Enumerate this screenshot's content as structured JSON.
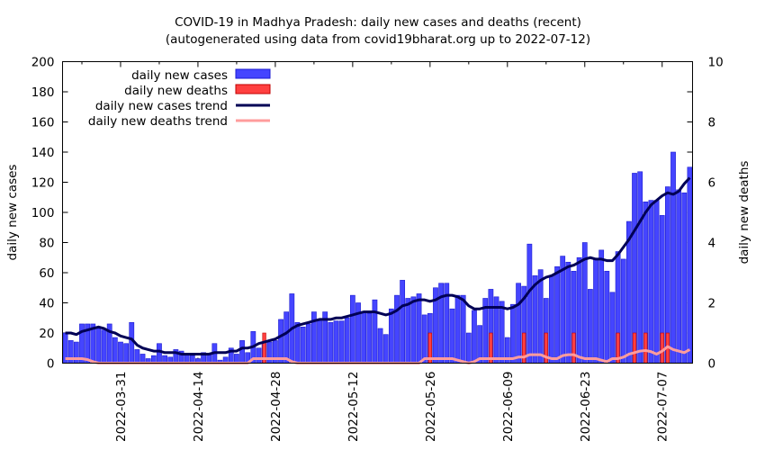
{
  "chart_data": {
    "type": "bar",
    "title": "COVID-19 in Madhya Pradesh: daily new cases and deaths (recent)",
    "subtitle": "(autogenerated using data from covid19bharat.org up to 2022-07-12)",
    "ylabel": "daily new cases",
    "y2label": "daily new deaths",
    "ylim": [
      0,
      200
    ],
    "y2lim": [
      0,
      10
    ],
    "yticks": [
      0,
      20,
      40,
      60,
      80,
      100,
      120,
      140,
      160,
      180,
      200
    ],
    "y2ticks": [
      0,
      2,
      4,
      6,
      8,
      10
    ],
    "x_start": "2022-03-21",
    "x_end": "2022-07-12",
    "xtick_labels": [
      "2022-03-31",
      "2022-04-14",
      "2022-04-28",
      "2022-05-12",
      "2022-05-26",
      "2022-06-09",
      "2022-06-23",
      "2022-07-07"
    ],
    "legend": {
      "position": "top-left",
      "entries": [
        "daily new cases",
        "daily new deaths",
        "daily new cases trend",
        "daily new deaths trend"
      ]
    },
    "colors": {
      "cases_bar": "#4545ff",
      "cases_bar_edge": "#1c1cd0",
      "deaths_bar": "#ff4040",
      "deaths_bar_edge": "#c00000",
      "cases_trend": "#000055",
      "deaths_trend": "#ff9c9c"
    },
    "series": [
      {
        "name": "daily new cases",
        "axis": "y1",
        "values": [
          20,
          15,
          14,
          26,
          26,
          26,
          23,
          22,
          26,
          17,
          14,
          13,
          27,
          9,
          6,
          3,
          5,
          13,
          5,
          4,
          9,
          8,
          6,
          5,
          3,
          7,
          6,
          13,
          2,
          4,
          10,
          6,
          15,
          7,
          21,
          10,
          14,
          14,
          15,
          29,
          34,
          46,
          27,
          24,
          26,
          34,
          28,
          34,
          27,
          28,
          28,
          30,
          45,
          40,
          34,
          33,
          42,
          23,
          19,
          36,
          45,
          55,
          43,
          44,
          46,
          32,
          33,
          50,
          53,
          53,
          36,
          45,
          45,
          20,
          35,
          25,
          43,
          49,
          44,
          41,
          17,
          39,
          53,
          51,
          79,
          58,
          62,
          43,
          58,
          64,
          71,
          67,
          61,
          70,
          80,
          49,
          69,
          75,
          61,
          47,
          74,
          69,
          94,
          126,
          127,
          107,
          108,
          108,
          98,
          117,
          140,
          115,
          113,
          130
        ]
      },
      {
        "name": "daily new deaths",
        "axis": "y2",
        "values": [
          0,
          0,
          0,
          0,
          0,
          0,
          0,
          0,
          0,
          0,
          0,
          0,
          0,
          0,
          0,
          0,
          0,
          0,
          0,
          0,
          0,
          0,
          0,
          0,
          0,
          0,
          0,
          0,
          0,
          0,
          0,
          0,
          0,
          0,
          0,
          0,
          1,
          0,
          0,
          0,
          0,
          0,
          0,
          0,
          0,
          0,
          0,
          0,
          0,
          0,
          0,
          0,
          0,
          0,
          0,
          0,
          0,
          0,
          0,
          0,
          0,
          0,
          0,
          0,
          0,
          0,
          1,
          0,
          0,
          0,
          0,
          0,
          0,
          0,
          0,
          0,
          0,
          1,
          0,
          0,
          0,
          0,
          0,
          1,
          0,
          0,
          0,
          1,
          0,
          0,
          0,
          0,
          1,
          0,
          0,
          0,
          0,
          0,
          0,
          0,
          1,
          0,
          0,
          1,
          0,
          1,
          0,
          0,
          1,
          1,
          0,
          0,
          0,
          0
        ]
      },
      {
        "name": "daily new cases trend",
        "axis": "y1",
        "values": [
          20,
          20,
          19,
          21,
          22,
          23,
          24,
          23,
          21,
          20,
          18,
          17,
          16,
          12,
          10,
          9,
          8,
          8,
          7,
          7,
          7,
          6,
          6,
          6,
          6,
          6,
          6,
          7,
          7,
          7,
          8,
          8,
          10,
          10,
          11,
          13,
          14,
          15,
          16,
          18,
          20,
          23,
          25,
          26,
          27,
          28,
          29,
          29,
          29,
          30,
          30,
          31,
          32,
          33,
          34,
          34,
          34,
          33,
          32,
          33,
          35,
          38,
          39,
          41,
          42,
          42,
          41,
          42,
          44,
          45,
          45,
          44,
          42,
          38,
          36,
          36,
          37,
          37,
          37,
          37,
          36,
          37,
          39,
          43,
          48,
          52,
          55,
          57,
          58,
          60,
          62,
          64,
          65,
          67,
          69,
          70,
          69,
          69,
          68,
          68,
          72,
          77,
          82,
          88,
          94,
          100,
          105,
          108,
          111,
          113,
          112,
          114,
          119,
          123
        ]
      },
      {
        "name": "daily new deaths trend",
        "axis": "y2",
        "values": [
          0.15,
          0.15,
          0.15,
          0.15,
          0.12,
          0.05,
          0,
          0,
          0,
          0,
          0,
          0,
          0,
          0,
          0,
          0,
          0,
          0,
          0,
          0,
          0,
          0,
          0,
          0,
          0,
          0,
          0,
          0,
          0,
          0,
          0,
          0,
          0,
          0,
          0.15,
          0.15,
          0.15,
          0.15,
          0.15,
          0.15,
          0.15,
          0.05,
          0,
          0,
          0,
          0,
          0,
          0,
          0,
          0,
          0,
          0,
          0,
          0,
          0,
          0,
          0,
          0,
          0,
          0,
          0,
          0,
          0,
          0,
          0,
          0.15,
          0.15,
          0.15,
          0.15,
          0.15,
          0.15,
          0.1,
          0.05,
          0,
          0.05,
          0.15,
          0.15,
          0.15,
          0.15,
          0.15,
          0.15,
          0.15,
          0.2,
          0.2,
          0.28,
          0.28,
          0.28,
          0.2,
          0.15,
          0.15,
          0.25,
          0.28,
          0.28,
          0.2,
          0.15,
          0.15,
          0.15,
          0.1,
          0.05,
          0.15,
          0.15,
          0.2,
          0.3,
          0.35,
          0.4,
          0.42,
          0.38,
          0.3,
          0.4,
          0.55,
          0.45,
          0.4,
          0.35,
          0.45
        ]
      }
    ]
  }
}
